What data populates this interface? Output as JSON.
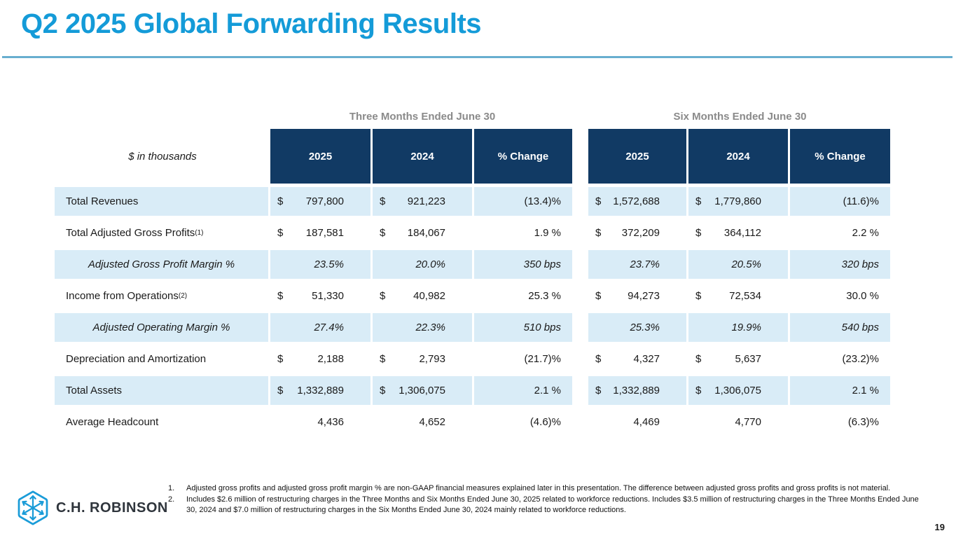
{
  "slide": {
    "title": "Q2 2025 Global Forwarding Results",
    "page_number": "19",
    "logo_text": "C.H. ROBINSON"
  },
  "colors": {
    "title_blue": "#149bd8",
    "rule_blue": "#68aecf",
    "header_navy": "#113a64",
    "row_light_blue": "#d9ecf7",
    "group_header_gray": "#8a8a8a",
    "logo_blue": "#1a9cd8"
  },
  "icons": {
    "logo_icon": "hexagon-arrows-icon"
  },
  "table": {
    "units_label": "$ in thousands",
    "group_headers": [
      "Three Months Ended June 30",
      "Six Months Ended June 30"
    ],
    "column_headers": [
      "2025",
      "2024",
      "% Change",
      "2025",
      "2024",
      "% Change"
    ],
    "rows": [
      {
        "label": "Total Revenues",
        "sup": "",
        "italic": false,
        "shaded": true,
        "cells": [
          {
            "c": "$",
            "v": "797,800"
          },
          {
            "c": "$",
            "v": "921,223"
          },
          {
            "p": "(13.4)%"
          },
          {
            "c": "$",
            "v": "1,572,688"
          },
          {
            "c": "$",
            "v": "1,779,860"
          },
          {
            "p": "(11.6)%"
          }
        ]
      },
      {
        "label": "Total Adjusted Gross Profits",
        "sup": "(1)",
        "italic": false,
        "shaded": false,
        "cells": [
          {
            "c": "$",
            "v": "187,581"
          },
          {
            "c": "$",
            "v": "184,067"
          },
          {
            "p": "1.9 %"
          },
          {
            "c": "$",
            "v": "372,209"
          },
          {
            "c": "$",
            "v": "364,112"
          },
          {
            "p": "2.2 %"
          }
        ]
      },
      {
        "label": "Adjusted Gross Profit Margin %",
        "sup": "",
        "italic": true,
        "shaded": true,
        "cells": [
          {
            "v": "23.5%"
          },
          {
            "v": "20.0%"
          },
          {
            "p": "350 bps"
          },
          {
            "v": "23.7%"
          },
          {
            "v": "20.5%"
          },
          {
            "p": "320 bps"
          }
        ]
      },
      {
        "label": "Income from Operations",
        "sup": "(2)",
        "italic": false,
        "shaded": false,
        "cells": [
          {
            "c": "$",
            "v": "51,330"
          },
          {
            "c": "$",
            "v": "40,982"
          },
          {
            "p": "25.3 %"
          },
          {
            "c": "$",
            "v": "94,273"
          },
          {
            "c": "$",
            "v": "72,534"
          },
          {
            "p": "30.0 %"
          }
        ]
      },
      {
        "label": "Adjusted Operating Margin %",
        "sup": "",
        "italic": true,
        "shaded": true,
        "cells": [
          {
            "v": "27.4%"
          },
          {
            "v": "22.3%"
          },
          {
            "p": "510 bps"
          },
          {
            "v": "25.3%"
          },
          {
            "v": "19.9%"
          },
          {
            "p": "540 bps"
          }
        ]
      },
      {
        "label": "Depreciation and Amortization",
        "sup": "",
        "italic": false,
        "shaded": false,
        "cells": [
          {
            "c": "$",
            "v": "2,188"
          },
          {
            "c": "$",
            "v": "2,793"
          },
          {
            "p": "(21.7)%"
          },
          {
            "c": "$",
            "v": "4,327"
          },
          {
            "c": "$",
            "v": "5,637"
          },
          {
            "p": "(23.2)%"
          }
        ]
      },
      {
        "label": "Total Assets",
        "sup": "",
        "italic": false,
        "shaded": true,
        "cells": [
          {
            "c": "$",
            "v": "1,332,889"
          },
          {
            "c": "$",
            "v": "1,306,075"
          },
          {
            "p": "2.1 %"
          },
          {
            "c": "$",
            "v": "1,332,889"
          },
          {
            "c": "$",
            "v": "1,306,075"
          },
          {
            "p": "2.1 %"
          }
        ]
      },
      {
        "label": "Average Headcount",
        "sup": "",
        "italic": false,
        "shaded": false,
        "cells": [
          {
            "v": "4,436"
          },
          {
            "v": "4,652"
          },
          {
            "p": "(4.6)%"
          },
          {
            "v": "4,469"
          },
          {
            "v": "4,770"
          },
          {
            "p": "(6.3)%"
          }
        ]
      }
    ]
  },
  "footnotes": [
    {
      "num": "1.",
      "text": "Adjusted gross profits and adjusted gross profit margin % are non-GAAP financial measures explained later in this presentation. The difference between adjusted gross profits and gross profits is not material."
    },
    {
      "num": "2.",
      "text": "Includes $2.6 million of restructuring charges in the Three Months and Six Months Ended June 30, 2025 related to workforce reductions. Includes $3.5 million of restructuring charges in the Three Months Ended June 30, 2024 and $7.0 million of restructuring charges in the Six Months Ended June 30, 2024 mainly related to workforce reductions."
    }
  ]
}
